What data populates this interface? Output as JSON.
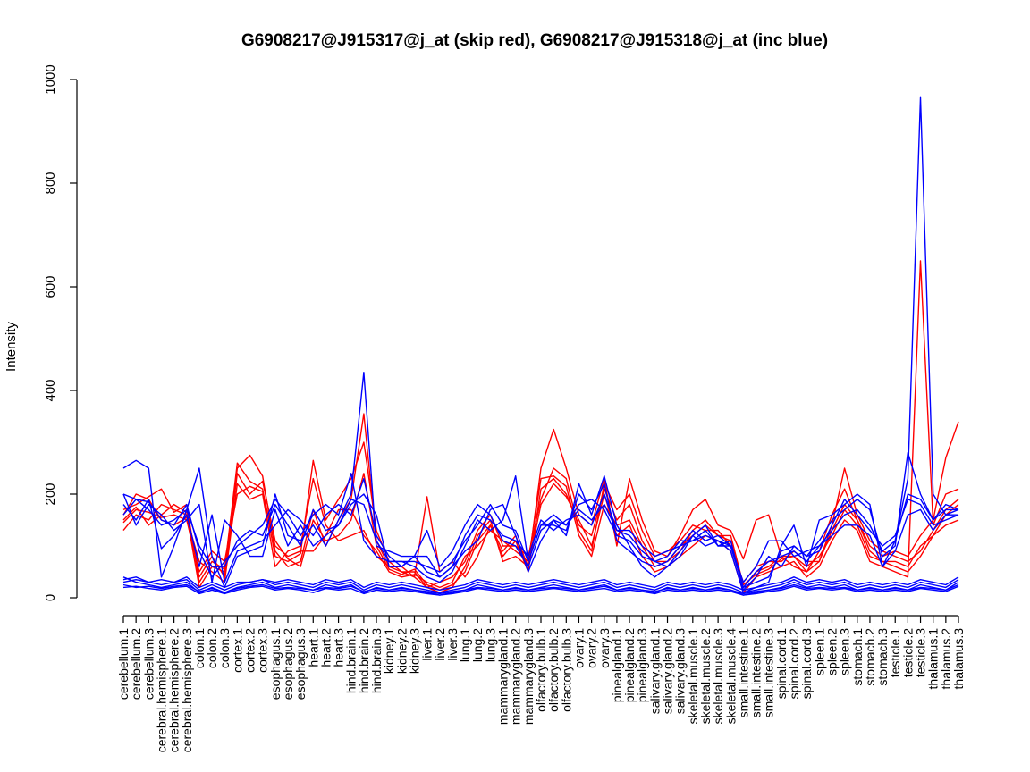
{
  "chart_data": {
    "type": "line",
    "title": "G6908217@J915317@j_at (skip red), G6908217@J915318@j_at (inc blue)",
    "xlabel": "",
    "ylabel": "Intensity",
    "ylim": [
      0,
      1000
    ],
    "y_ticks": [
      0,
      200,
      400,
      600,
      800,
      1000
    ],
    "grid": false,
    "legend": "none",
    "colors": {
      "skip": "#ff0000",
      "inc": "#0000ff",
      "axis": "#000000"
    },
    "categories": [
      "cerebellum.1",
      "cerebellum.2",
      "cerebellum.3",
      "cerebral.hemisphere.1",
      "cerebral.hemisphere.2",
      "cerebral.hemisphere.3",
      "colon.1",
      "colon.2",
      "colon.3",
      "cortex.1",
      "cortex.2",
      "cortex.3",
      "esophagus.1",
      "esophagus.2",
      "esophagus.3",
      "heart.1",
      "heart.2",
      "heart.3",
      "hind.brain.1",
      "hind.brain.2",
      "hind.brain.3",
      "kidney.1",
      "kidney.2",
      "kidney.3",
      "liver.1",
      "liver.2",
      "liver.3",
      "lung.1",
      "lung.2",
      "lung.3",
      "mammarygland.1",
      "mammarygland.2",
      "mammarygland.3",
      "olfactory.bulb.1",
      "olfactory.bulb.2",
      "olfactory.bulb.3",
      "ovary.1",
      "ovary.2",
      "ovary.3",
      "pinealgland.1",
      "pinealgland.2",
      "pinealgland.3",
      "salivary.gland.1",
      "salivary.gland.2",
      "salivary.gland.3",
      "skeletal.muscle.1",
      "skeletal.muscle.2",
      "skeletal.muscle.3",
      "skeletal.muscle.4",
      "small.intestine.1",
      "small.intestine.2",
      "small.intestine.3",
      "spinal.cord.1",
      "spinal.cord.2",
      "spinal.cord.3",
      "spleen.1",
      "spleen.2",
      "spleen.3",
      "stomach.1",
      "stomach.2",
      "stomach.3",
      "testicle.1",
      "testicle.2",
      "testicle.3",
      "thalamus.1",
      "thalamus.2",
      "thalamus.3"
    ],
    "series": [
      {
        "group": "skip",
        "values": [
          130,
          160,
          150,
          180,
          170,
          160,
          20,
          60,
          50,
          250,
          275,
          235,
          90,
          60,
          70,
          170,
          100,
          150,
          190,
          355,
          110,
          60,
          50,
          40,
          20,
          10,
          20,
          60,
          120,
          150,
          70,
          80,
          60,
          180,
          220,
          195,
          150,
          100,
          200,
          120,
          140,
          80,
          50,
          60,
          80,
          100,
          120,
          110,
          90,
          10,
          40,
          50,
          60,
          70,
          40,
          60,
          110,
          150,
          130,
          70,
          60,
          50,
          40,
          650,
          140,
          200,
          210
        ]
      },
      {
        "group": "skip",
        "values": [
          145,
          170,
          165,
          155,
          160,
          150,
          50,
          90,
          70,
          200,
          215,
          205,
          100,
          80,
          90,
          90,
          120,
          170,
          170,
          120,
          90,
          50,
          40,
          45,
          30,
          20,
          30,
          80,
          100,
          130,
          110,
          90,
          70,
          230,
          235,
          215,
          120,
          80,
          180,
          140,
          150,
          100,
          60,
          70,
          100,
          120,
          140,
          120,
          110,
          20,
          50,
          60,
          80,
          80,
          60,
          80,
          120,
          170,
          140,
          80,
          70,
          70,
          60,
          100,
          120,
          140,
          150
        ]
      },
      {
        "group": "skip",
        "values": [
          160,
          200,
          190,
          150,
          140,
          155,
          70,
          50,
          30,
          220,
          190,
          200,
          60,
          90,
          100,
          230,
          140,
          110,
          120,
          130,
          80,
          60,
          60,
          40,
          195,
          50,
          70,
          40,
          80,
          140,
          90,
          120,
          60,
          250,
          325,
          250,
          160,
          140,
          230,
          100,
          230,
          150,
          90,
          80,
          120,
          170,
          190,
          140,
          130,
          75,
          150,
          160,
          80,
          60,
          50,
          90,
          160,
          210,
          150,
          100,
          80,
          90,
          80,
          120,
          150,
          270,
          340
        ]
      },
      {
        "group": "skip",
        "values": [
          170,
          180,
          195,
          210,
          165,
          180,
          30,
          70,
          55,
          260,
          225,
          210,
          80,
          70,
          85,
          265,
          150,
          190,
          230,
          300,
          130,
          70,
          50,
          50,
          20,
          30,
          40,
          70,
          130,
          160,
          100,
          100,
          80,
          190,
          250,
          230,
          130,
          90,
          220,
          170,
          200,
          130,
          80,
          90,
          110,
          140,
          130,
          130,
          100,
          30,
          60,
          70,
          70,
          90,
          70,
          70,
          140,
          250,
          160,
          110,
          90,
          80,
          70,
          90,
          130,
          170,
          190
        ]
      },
      {
        "group": "skip",
        "values": [
          150,
          175,
          140,
          160,
          180,
          165,
          40,
          80,
          40,
          240,
          200,
          225,
          110,
          75,
          60,
          150,
          110,
          120,
          150,
          240,
          100,
          55,
          45,
          55,
          25,
          15,
          25,
          50,
          110,
          140,
          80,
          110,
          50,
          210,
          230,
          200,
          140,
          120,
          210,
          150,
          180,
          110,
          70,
          70,
          90,
          130,
          150,
          120,
          120,
          25,
          45,
          55,
          75,
          80,
          50,
          70,
          130,
          180,
          150,
          90,
          70,
          60,
          50,
          80,
          120,
          160,
          180
        ]
      },
      {
        "group": "inc",
        "values": [
          250,
          265,
          250,
          40,
          100,
          170,
          250,
          80,
          20,
          80,
          90,
          100,
          200,
          120,
          110,
          140,
          100,
          150,
          200,
          435,
          100,
          90,
          80,
          80,
          50,
          40,
          60,
          90,
          110,
          170,
          180,
          120,
          50,
          110,
          150,
          120,
          220,
          160,
          235,
          140,
          100,
          60,
          40,
          60,
          80,
          120,
          100,
          110,
          90,
          10,
          20,
          30,
          100,
          140,
          60,
          150,
          160,
          180,
          200,
          180,
          60,
          110,
          230,
          965,
          200,
          160,
          170
        ]
      },
      {
        "group": "inc",
        "values": [
          200,
          190,
          185,
          150,
          140,
          180,
          90,
          40,
          70,
          100,
          120,
          140,
          190,
          160,
          120,
          160,
          180,
          160,
          240,
          110,
          80,
          70,
          70,
          60,
          40,
          30,
          50,
          100,
          150,
          130,
          150,
          235,
          70,
          140,
          140,
          130,
          200,
          170,
          220,
          110,
          90,
          70,
          60,
          70,
          100,
          130,
          110,
          120,
          100,
          20,
          30,
          40,
          90,
          100,
          80,
          110,
          150,
          170,
          190,
          170,
          80,
          100,
          280,
          200,
          150,
          180,
          170
        ]
      },
      {
        "group": "inc",
        "values": [
          200,
          140,
          180,
          160,
          130,
          150,
          180,
          30,
          150,
          120,
          80,
          80,
          170,
          100,
          140,
          100,
          120,
          140,
          180,
          200,
          160,
          60,
          60,
          80,
          130,
          60,
          90,
          140,
          180,
          160,
          110,
          100,
          60,
          130,
          150,
          140,
          180,
          190,
          170,
          120,
          110,
          80,
          70,
          80,
          110,
          110,
          130,
          100,
          100,
          30,
          60,
          110,
          110,
          80,
          90,
          100,
          120,
          140,
          140,
          120,
          60,
          90,
          160,
          170,
          130,
          160,
          160
        ]
      },
      {
        "group": "inc",
        "values": [
          180,
          150,
          190,
          95,
          120,
          160,
          60,
          160,
          30,
          90,
          100,
          110,
          140,
          170,
          150,
          120,
          160,
          180,
          160,
          230,
          120,
          80,
          60,
          80,
          80,
          40,
          60,
          120,
          160,
          150,
          120,
          110,
          80,
          150,
          130,
          150,
          160,
          140,
          200,
          130,
          120,
          90,
          70,
          60,
          90,
          120,
          140,
          100,
          110,
          15,
          40,
          80,
          60,
          100,
          80,
          90,
          140,
          190,
          160,
          130,
          100,
          120,
          190,
          180,
          140,
          150,
          160
        ]
      },
      {
        "group": "inc",
        "values": [
          160,
          190,
          170,
          140,
          150,
          170,
          100,
          60,
          60,
          110,
          130,
          120,
          180,
          140,
          100,
          170,
          130,
          140,
          190,
          180,
          110,
          70,
          70,
          70,
          60,
          50,
          70,
          110,
          140,
          180,
          140,
          130,
          70,
          140,
          160,
          140,
          170,
          150,
          180,
          130,
          130,
          100,
          80,
          90,
          100,
          110,
          120,
          110,
          100,
          20,
          50,
          70,
          80,
          90,
          70,
          100,
          130,
          160,
          170,
          140,
          90,
          110,
          200,
          190,
          150,
          170,
          170
        ]
      },
      {
        "group": "inc",
        "values": [
          40,
          30,
          25,
          20,
          25,
          30,
          10,
          20,
          10,
          20,
          25,
          30,
          20,
          25,
          20,
          15,
          25,
          20,
          25,
          10,
          20,
          15,
          20,
          15,
          10,
          5,
          10,
          15,
          25,
          20,
          15,
          20,
          15,
          20,
          25,
          20,
          15,
          20,
          25,
          15,
          20,
          15,
          10,
          20,
          15,
          20,
          15,
          20,
          15,
          5,
          10,
          15,
          20,
          30,
          20,
          25,
          20,
          25,
          15,
          20,
          15,
          20,
          15,
          25,
          20,
          15,
          30
        ]
      },
      {
        "group": "inc",
        "values": [
          30,
          35,
          30,
          25,
          30,
          35,
          15,
          25,
          15,
          25,
          30,
          35,
          25,
          30,
          25,
          20,
          30,
          25,
          30,
          15,
          25,
          20,
          25,
          20,
          15,
          10,
          15,
          20,
          30,
          25,
          20,
          25,
          20,
          25,
          30,
          25,
          20,
          25,
          30,
          20,
          25,
          20,
          15,
          25,
          20,
          25,
          20,
          25,
          20,
          10,
          15,
          20,
          25,
          35,
          25,
          30,
          25,
          30,
          20,
          25,
          20,
          25,
          20,
          30,
          25,
          20,
          35
        ]
      },
      {
        "group": "inc",
        "values": [
          20,
          22,
          18,
          15,
          20,
          22,
          8,
          15,
          8,
          15,
          20,
          22,
          15,
          18,
          15,
          10,
          18,
          15,
          18,
          8,
          15,
          12,
          15,
          12,
          8,
          5,
          8,
          12,
          18,
          15,
          12,
          15,
          12,
          15,
          18,
          15,
          12,
          15,
          18,
          12,
          15,
          12,
          8,
          15,
          12,
          15,
          12,
          15,
          12,
          5,
          8,
          12,
          15,
          22,
          15,
          18,
          15,
          18,
          12,
          15,
          12,
          15,
          12,
          18,
          15,
          12,
          22
        ]
      },
      {
        "group": "inc",
        "values": [
          35,
          40,
          30,
          35,
          30,
          40,
          20,
          30,
          20,
          30,
          30,
          35,
          30,
          35,
          30,
          25,
          35,
          30,
          35,
          20,
          30,
          25,
          30,
          25,
          20,
          15,
          20,
          25,
          35,
          30,
          25,
          30,
          25,
          30,
          35,
          30,
          25,
          30,
          35,
          25,
          30,
          25,
          20,
          30,
          25,
          30,
          25,
          30,
          25,
          15,
          20,
          25,
          30,
          40,
          30,
          35,
          30,
          35,
          25,
          30,
          25,
          30,
          25,
          35,
          30,
          25,
          40
        ]
      },
      {
        "group": "inc",
        "values": [
          25,
          20,
          22,
          18,
          22,
          25,
          12,
          18,
          10,
          18,
          22,
          25,
          18,
          20,
          18,
          15,
          20,
          18,
          22,
          12,
          18,
          15,
          18,
          15,
          12,
          8,
          12,
          15,
          20,
          18,
          15,
          18,
          15,
          18,
          20,
          18,
          15,
          18,
          22,
          15,
          18,
          15,
          12,
          18,
          15,
          18,
          15,
          18,
          15,
          8,
          12,
          15,
          18,
          25,
          18,
          20,
          18,
          20,
          15,
          18,
          15,
          18,
          15,
          20,
          18,
          15,
          25
        ]
      }
    ]
  }
}
